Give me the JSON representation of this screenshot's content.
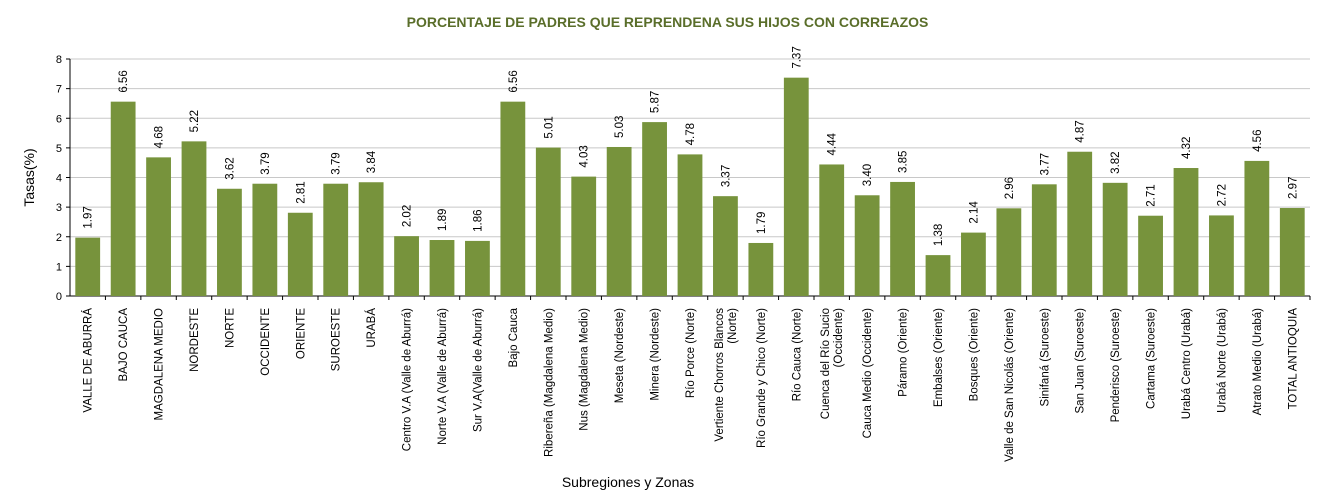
{
  "chart_data": {
    "type": "bar",
    "title": "PORCENTAJE DE PADRES QUE REPRENDENA SUS HIJOS CON CORREAZOS",
    "xlabel": "Subregiones y Zonas",
    "ylabel": "Tasas(%)",
    "ylim": [
      0,
      8
    ],
    "yticks": [
      0,
      1,
      2,
      3,
      4,
      5,
      6,
      7,
      8
    ],
    "grid": true,
    "legend": "none",
    "bar_color": "#77933c",
    "title_color": "#5a6e2a",
    "categories": [
      "VALLE DE ABURRÁ",
      "BAJO CAUCA",
      "MAGDALENA MEDIO",
      "NORDESTE",
      "NORTE",
      "OCCIDENTE",
      "ORIENTE",
      "SUROESTE",
      "URABÁ",
      "Centro V.A (Valle de Aburrá)",
      "Norte V.A (Valle de Aburrá)",
      "Sur V.A(Valle de Aburrá)",
      "Bajo Cauca",
      "Ribereña  (Magdalena Medio)",
      "Nus  (Magdalena Medio)",
      "Meseta  (Nordeste)",
      "Minera  (Nordeste)",
      "Río Porce   (Norte)",
      [
        "Vertiente Chorros Blancos",
        "(Norte)"
      ],
      "Río Grande y Chico  (Norte)",
      "Río Cauca  (Norte)",
      [
        "Cuenca del Río Sucio",
        "(Occidente)"
      ],
      "Cauca Medio  (Occidente)",
      "Páramo  (Oriente)",
      "Embalses (Oriente)",
      "Bosques  (Oriente)",
      "Valle de San Nicolás (Oriente)",
      "Sinifaná  (Suroeste)",
      "San Juan  (Suroeste)",
      "Penderisco  (Suroeste)",
      "Cartama  (Suroeste)",
      "Urabá Centro  (Urabá)",
      "Urabá Norte  (Urabá)",
      "Atrato Medio  (Urabá)",
      "TOTAL ANTIOQUIA"
    ],
    "values": [
      1.97,
      6.56,
      4.68,
      5.22,
      3.62,
      3.79,
      2.81,
      3.79,
      3.84,
      2.02,
      1.89,
      1.86,
      6.56,
      5.01,
      4.03,
      5.03,
      5.87,
      4.78,
      3.37,
      1.79,
      7.37,
      4.44,
      3.4,
      3.85,
      1.38,
      2.14,
      2.96,
      3.77,
      4.87,
      3.82,
      2.71,
      4.32,
      2.72,
      4.56,
      2.97
    ],
    "data_labels": [
      "1.97",
      "6.56",
      "4.68",
      "5.22",
      "3.62",
      "3.79",
      "2.81",
      "3.79",
      "3.84",
      "2.02",
      "1.89",
      "1.86",
      "6.56",
      "5.01",
      "4.03",
      "5.03",
      "5.87",
      "4.78",
      "3.37",
      "1.79",
      "7.37",
      "4.44",
      "3.40",
      "3.85",
      "1.38",
      "2.14",
      "2.96",
      "3.77",
      "4.87",
      "3.82",
      "2.71",
      "4.32",
      "2.72",
      "4.56",
      "2.97"
    ]
  }
}
